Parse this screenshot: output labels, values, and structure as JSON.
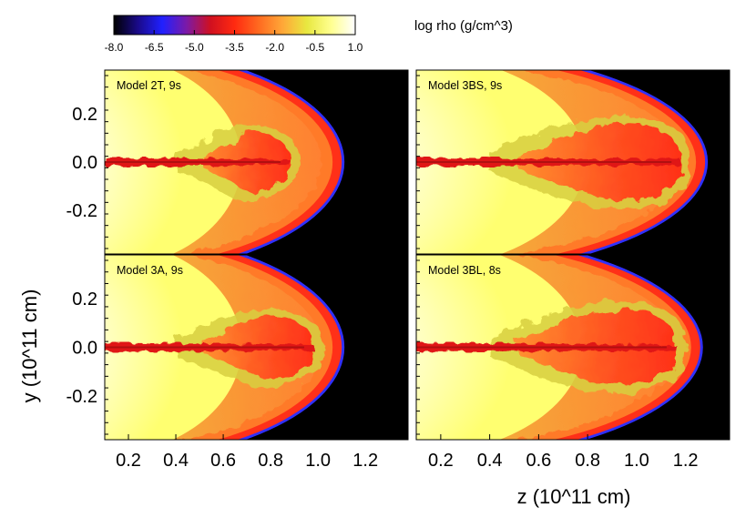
{
  "colorbar": {
    "title": "log rho (g/cm^3)",
    "ticks": [
      "-8.0",
      "-6.5",
      "-5.0",
      "-3.5",
      "-2.0",
      "-0.5",
      "1.0"
    ],
    "tick_values": [
      -8.0,
      -6.5,
      -5.0,
      -3.5,
      -2.0,
      -0.5,
      1.0
    ],
    "range": [
      -8.0,
      1.0
    ],
    "stops": [
      "#000000",
      "#1a0a8a",
      "#2020ff",
      "#7a1aa8",
      "#d01020",
      "#ff2a10",
      "#ff6a20",
      "#ffa838",
      "#e8e840",
      "#ffff90",
      "#ffffff"
    ]
  },
  "axes": {
    "ylabel": "y (10^11 cm)",
    "xlabel": "z (10^11 cm)",
    "y_ticks": [
      "0.2",
      "0.0",
      "-0.2"
    ],
    "y_tick_values": [
      0.2,
      0.0,
      -0.2
    ],
    "x_ticks": [
      "0.2",
      "0.4",
      "0.6",
      "0.8",
      "1.0",
      "1.2"
    ],
    "x_tick_values": [
      0.2,
      0.4,
      0.6,
      0.8,
      1.0,
      1.2
    ],
    "x_range": [
      0.1,
      1.38
    ],
    "y_range": [
      -0.38,
      0.38
    ]
  },
  "panels": [
    {
      "label": "Model 2T, 9s",
      "shock_front_z": 1.1,
      "cocoon_end_z": 0.88
    },
    {
      "label": "Model 3BS, 9s",
      "shock_front_z": 1.28,
      "cocoon_end_z": 1.18
    },
    {
      "label": "Model 3A, 9s",
      "shock_front_z": 1.1,
      "cocoon_end_z": 0.98
    },
    {
      "label": "Model 3BL, 8s",
      "shock_front_z": 1.26,
      "cocoon_end_z": 1.16
    }
  ],
  "colors": {
    "ambient_white": "#ffffff",
    "ambient_yellow": "#ffff80",
    "shell_orange": "#ff8a20",
    "jet_red": "#e01818",
    "front_blue": "#3030ff",
    "vacuum": "#000000"
  }
}
